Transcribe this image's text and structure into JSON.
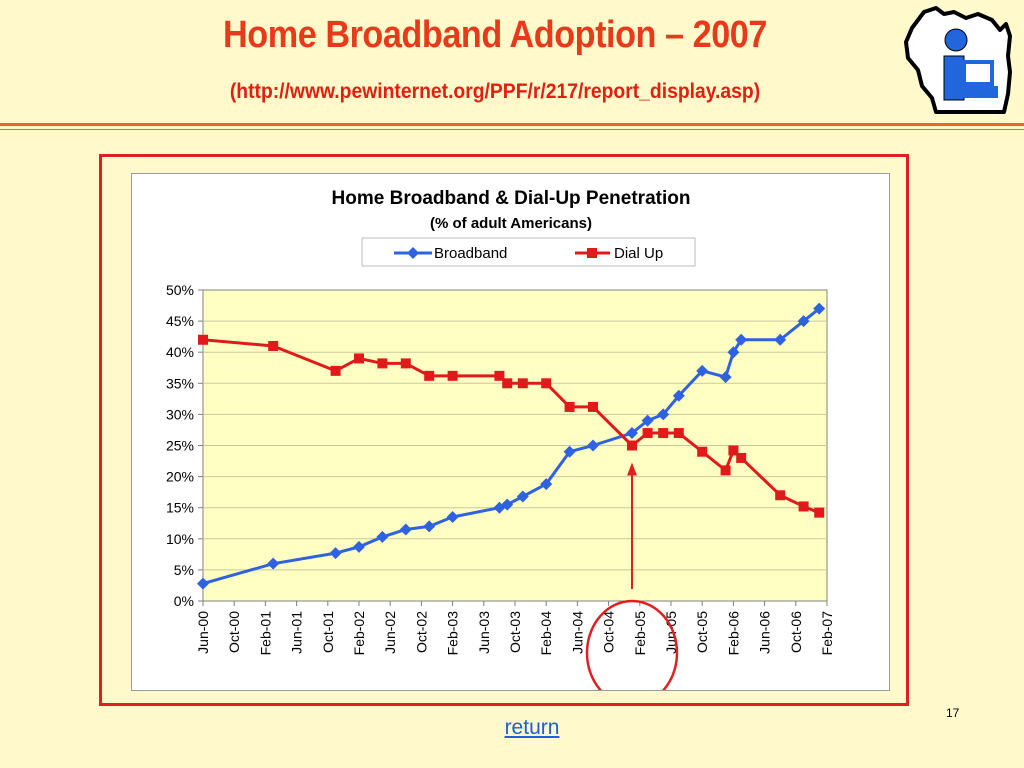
{
  "slide": {
    "title": "Home Broadband Adoption – 2007",
    "subtitle": "(http://www.pewinternet.org/PPF/r/217/report_display.asp)",
    "page_number": "17",
    "return_label": "return"
  },
  "logo": {
    "icon": "wisconsin-info-logo-icon"
  },
  "colors": {
    "title": "#e83a1a",
    "broadband": "#2f62e0",
    "dialup": "#e01a1a",
    "plot_bg": "#ffffc4",
    "annotation": "#e02020"
  },
  "chart_data": {
    "type": "line",
    "title": "Home Broadband & Dial-Up Penetration",
    "subtitle": "(% of adult Americans)",
    "xlabel": "",
    "ylabel": "",
    "ylim": [
      0,
      50
    ],
    "yticks": [
      "0%",
      "5%",
      "10%",
      "15%",
      "20%",
      "25%",
      "30%",
      "35%",
      "40%",
      "45%",
      "50%"
    ],
    "xticks": [
      "Jun-00",
      "Oct-00",
      "Feb-01",
      "Jun-01",
      "Oct-01",
      "Feb-02",
      "Jun-02",
      "Oct-02",
      "Feb-03",
      "Jun-03",
      "Oct-03",
      "Feb-04",
      "Jun-04",
      "Oct-04",
      "Feb-05",
      "Jun-05",
      "Oct-05",
      "Feb-06",
      "Jun-06",
      "Oct-06",
      "Feb-07"
    ],
    "legend_position": "top-center",
    "grid": true,
    "series": [
      {
        "name": "Broadband",
        "color": "#2f62e0",
        "marker": "diamond",
        "x": [
          "Jun-00",
          "Mar-01",
          "Nov-01",
          "Feb-02",
          "May-02",
          "Aug-02",
          "Nov-02",
          "Feb-03",
          "Aug-03",
          "Sep-03",
          "Nov-03",
          "Feb-04",
          "May-04",
          "Aug-04",
          "Jan-05",
          "Mar-05",
          "May-05",
          "Jul-05",
          "Oct-05",
          "Jan-06",
          "Feb-06",
          "Mar-06",
          "Aug-06",
          "Nov-06",
          "Jan-07"
        ],
        "values": [
          2.8,
          6.0,
          7.7,
          8.7,
          10.3,
          11.5,
          12.0,
          13.5,
          15.0,
          15.5,
          16.8,
          18.8,
          24.0,
          25.0,
          27.0,
          29.0,
          30.0,
          33.0,
          37.0,
          36.0,
          40.0,
          42.0,
          42.0,
          45.0,
          47.0
        ]
      },
      {
        "name": "Dial Up",
        "color": "#e01a1a",
        "marker": "square",
        "x": [
          "Jun-00",
          "Mar-01",
          "Nov-01",
          "Feb-02",
          "May-02",
          "Aug-02",
          "Nov-02",
          "Feb-03",
          "Aug-03",
          "Sep-03",
          "Nov-03",
          "Feb-04",
          "May-04",
          "Aug-04",
          "Jan-05",
          "Mar-05",
          "May-05",
          "Jul-05",
          "Oct-05",
          "Jan-06",
          "Feb-06",
          "Mar-06",
          "Aug-06",
          "Nov-06",
          "Jan-07"
        ],
        "values": [
          42.0,
          41.0,
          37.0,
          39.0,
          38.2,
          38.2,
          36.2,
          36.2,
          36.2,
          35.0,
          35.0,
          35.0,
          31.2,
          31.2,
          25.0,
          27.0,
          27.0,
          27.0,
          24.0,
          21.0,
          24.2,
          23.0,
          17.0,
          15.2,
          14.2
        ]
      }
    ],
    "annotations": [
      {
        "type": "circle",
        "at": "Jan-05"
      },
      {
        "type": "arrow",
        "at": "Jan-05",
        "points_to": 25
      }
    ]
  }
}
